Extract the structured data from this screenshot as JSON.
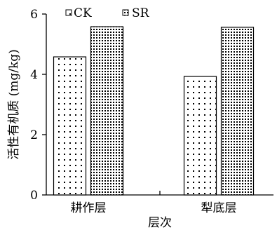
{
  "chart_data": {
    "type": "bar",
    "categories": [
      "耕作层",
      "犁底层"
    ],
    "series": [
      {
        "name": "CK",
        "values": [
          4.58,
          3.93
        ],
        "pattern": "sparse-dots"
      },
      {
        "name": "SR",
        "values": [
          5.58,
          5.56
        ],
        "pattern": "dense-dots"
      }
    ],
    "xlabel": "层次",
    "ylabel": "活性有机质 (mg/kg)",
    "ylim": [
      0,
      6
    ],
    "yticks": [
      0,
      2,
      4,
      6
    ],
    "grid": false,
    "legend_position": "top"
  }
}
